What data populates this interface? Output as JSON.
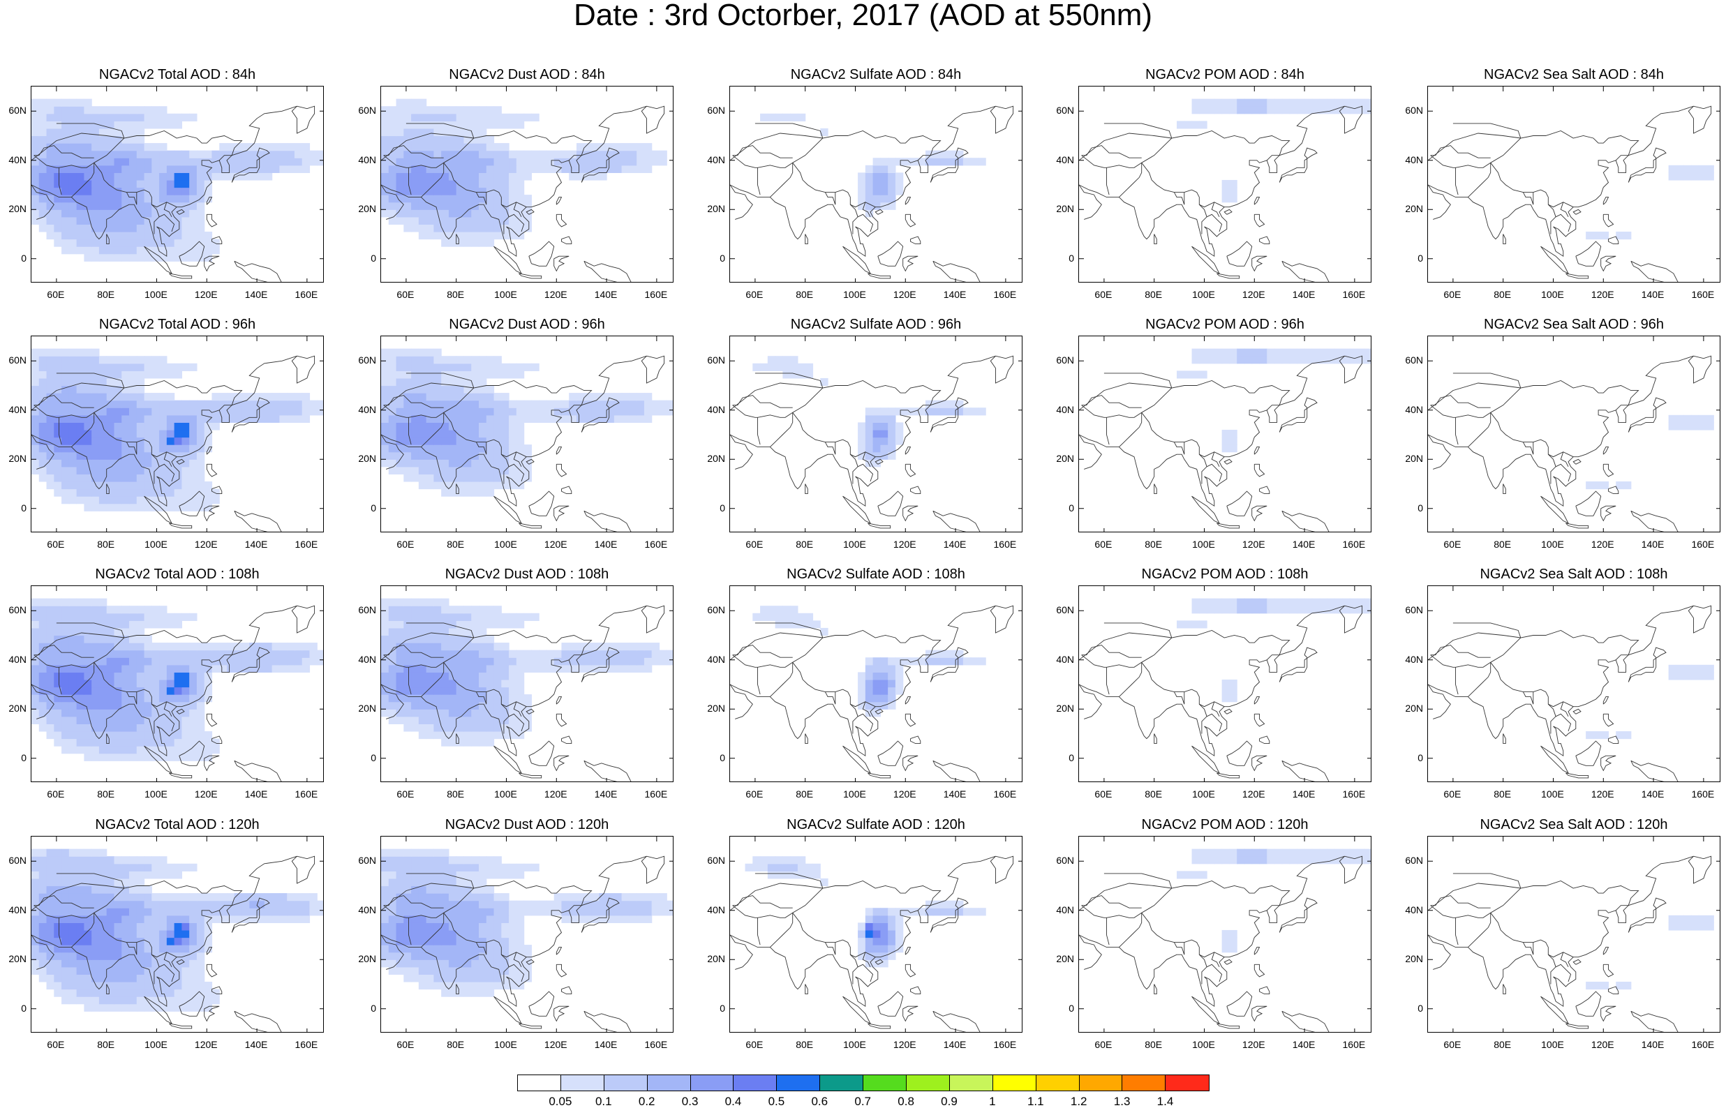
{
  "title": "Date : 3rd Octorber, 2017 (AOD at 550nm)",
  "rows": [
    {
      "hour": "84h",
      "panels": [
        {
          "title": "NGACv2 Total AOD : 84h",
          "species": "total"
        },
        {
          "title": "NGACv2 Dust AOD : 84h",
          "species": "dust"
        },
        {
          "title": "NGACv2 Sulfate AOD : 84h",
          "species": "sulfate"
        },
        {
          "title": "NGACv2 POM AOD : 84h",
          "species": "pom"
        },
        {
          "title": "NGACv2 Sea Salt AOD : 84h",
          "species": "seasalt"
        }
      ]
    },
    {
      "hour": "96h",
      "panels": [
        {
          "title": "NGACv2 Total AOD : 96h",
          "species": "total"
        },
        {
          "title": "NGACv2 Dust AOD : 96h",
          "species": "dust"
        },
        {
          "title": "NGACv2 Sulfate AOD : 96h",
          "species": "sulfate"
        },
        {
          "title": "NGACv2 POM AOD : 96h",
          "species": "pom"
        },
        {
          "title": "NGACv2 Sea Salt AOD : 96h",
          "species": "seasalt"
        }
      ]
    },
    {
      "hour": "108h",
      "panels": [
        {
          "title": "NGACv2 Total AOD : 108h",
          "species": "total"
        },
        {
          "title": "NGACv2 Dust AOD : 108h",
          "species": "dust"
        },
        {
          "title": "NGACv2 Sulfate AOD : 108h",
          "species": "sulfate"
        },
        {
          "title": "NGACv2 POM AOD : 108h",
          "species": "pom"
        },
        {
          "title": "NGACv2 Sea Salt AOD : 108h",
          "species": "seasalt"
        }
      ]
    },
    {
      "hour": "120h",
      "panels": [
        {
          "title": "NGACv2 Total AOD : 120h",
          "species": "total"
        },
        {
          "title": "NGACv2 Dust AOD : 120h",
          "species": "dust"
        },
        {
          "title": "NGACv2 Sulfate AOD : 120h",
          "species": "sulfate"
        },
        {
          "title": "NGACv2 POM AOD : 120h",
          "species": "pom"
        },
        {
          "title": "NGACv2 Sea Salt  AOD : 120h",
          "species": "seasalt"
        }
      ]
    }
  ],
  "lat_labels": [
    "60N",
    "40N",
    "20N",
    "0"
  ],
  "lon_labels": [
    "60E",
    "80E",
    "100E",
    "120E",
    "140E",
    "160E"
  ],
  "colorbar": {
    "colors": [
      "#ffffff",
      "#d6e0fb",
      "#bccbf9",
      "#a3b6f7",
      "#8a9df5",
      "#6b7ef2",
      "#1e6ff0",
      "#0c9a8a",
      "#55dc1e",
      "#9ef01e",
      "#c8f55a",
      "#ffff00",
      "#ffd000",
      "#ffa800",
      "#ff7d00",
      "#ff2a1a"
    ],
    "labels": [
      "0.05",
      "0.1",
      "0.2",
      "0.3",
      "0.4",
      "0.5",
      "0.6",
      "0.7",
      "0.8",
      "0.9",
      "1",
      "1.1",
      "1.2",
      "1.3",
      "1.4"
    ]
  }
}
